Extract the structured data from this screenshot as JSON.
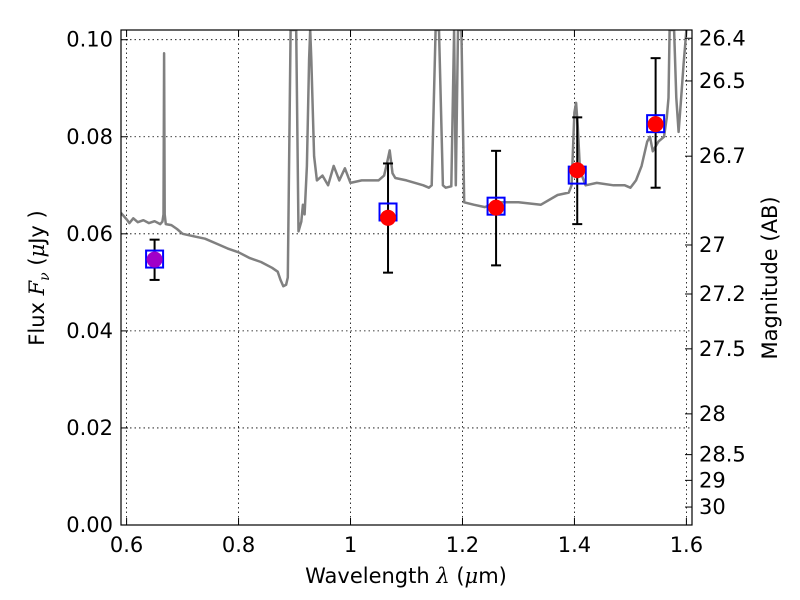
{
  "chart_data": {
    "type": "scatter",
    "title": "",
    "xlabel": {
      "prefix": "Wavelength  ",
      "symbol": "λ",
      "suffix_open": " (",
      "unit_symbol": "μ",
      "unit": "m",
      "suffix_close": ")"
    },
    "ylabel": {
      "prefix": "Flux  ",
      "symbol": "F",
      "subscript": "ν",
      "suffix_open": "  (",
      "unit_symbol": "μ",
      "unit": "Jy",
      "suffix_close": " )"
    },
    "y2label": "Magnitude (AB)",
    "xlim": [
      0.59,
      1.61
    ],
    "ylim": [
      0.0,
      0.102
    ],
    "xticks": [
      {
        "value": 0.6,
        "label": "0.6"
      },
      {
        "value": 0.8,
        "label": "0.8"
      },
      {
        "value": 1.0,
        "label": "1"
      },
      {
        "value": 1.2,
        "label": "1.2"
      },
      {
        "value": 1.4,
        "label": "1.4"
      },
      {
        "value": 1.6,
        "label": "1.6"
      }
    ],
    "yticks": [
      {
        "value": 0.0,
        "label": "0.00"
      },
      {
        "value": 0.02,
        "label": "0.02"
      },
      {
        "value": 0.04,
        "label": "0.04"
      },
      {
        "value": 0.06,
        "label": "0.06"
      },
      {
        "value": 0.08,
        "label": "0.08"
      },
      {
        "value": 0.1,
        "label": "0.10"
      }
    ],
    "y2ticks": [
      {
        "flux": 0.1003,
        "label": "26.4"
      },
      {
        "flux": 0.0915,
        "label": "26.5"
      },
      {
        "flux": 0.076,
        "label": "26.7"
      },
      {
        "flux": 0.0577,
        "label": "27"
      },
      {
        "flux": 0.0476,
        "label": "27.2"
      },
      {
        "flux": 0.0363,
        "label": "27.5"
      },
      {
        "flux": 0.0229,
        "label": "28"
      },
      {
        "flux": 0.0145,
        "label": "28.5"
      },
      {
        "flux": 0.0092,
        "label": "29"
      },
      {
        "flux": 0.0037,
        "label": "30"
      }
    ],
    "grid": true,
    "model_spectrum": {
      "color": "#808080",
      "points": [
        [
          0.59,
          0.0643
        ],
        [
          0.6,
          0.063
        ],
        [
          0.605,
          0.0622
        ],
        [
          0.612,
          0.0632
        ],
        [
          0.62,
          0.0624
        ],
        [
          0.63,
          0.0628
        ],
        [
          0.64,
          0.0622
        ],
        [
          0.65,
          0.0626
        ],
        [
          0.66,
          0.062
        ],
        [
          0.664,
          0.0625
        ],
        [
          0.666,
          0.064
        ],
        [
          0.667,
          0.0972
        ],
        [
          0.668,
          0.064
        ],
        [
          0.67,
          0.062
        ],
        [
          0.68,
          0.0618
        ],
        [
          0.69,
          0.061
        ],
        [
          0.7,
          0.06
        ],
        [
          0.72,
          0.0595
        ],
        [
          0.74,
          0.059
        ],
        [
          0.76,
          0.058
        ],
        [
          0.78,
          0.057
        ],
        [
          0.8,
          0.0562
        ],
        [
          0.82,
          0.055
        ],
        [
          0.84,
          0.0542
        ],
        [
          0.86,
          0.053
        ],
        [
          0.87,
          0.0522
        ],
        [
          0.875,
          0.0505
        ],
        [
          0.88,
          0.0492
        ],
        [
          0.885,
          0.0495
        ],
        [
          0.888,
          0.051
        ],
        [
          0.893,
          0.102
        ],
        [
          0.903,
          0.102
        ],
        [
          0.907,
          0.0605
        ],
        [
          0.912,
          0.0625
        ],
        [
          0.915,
          0.066
        ],
        [
          0.918,
          0.064
        ],
        [
          0.922,
          0.074
        ],
        [
          0.926,
          0.096
        ],
        [
          0.928,
          0.102
        ],
        [
          0.93,
          0.096
        ],
        [
          0.935,
          0.076
        ],
        [
          0.94,
          0.071
        ],
        [
          0.95,
          0.072
        ],
        [
          0.96,
          0.07
        ],
        [
          0.97,
          0.074
        ],
        [
          0.98,
          0.071
        ],
        [
          0.99,
          0.0735
        ],
        [
          1.0,
          0.0705
        ],
        [
          1.02,
          0.071
        ],
        [
          1.05,
          0.071
        ],
        [
          1.06,
          0.072
        ],
        [
          1.065,
          0.0745
        ],
        [
          1.07,
          0.0772
        ],
        [
          1.075,
          0.0725
        ],
        [
          1.08,
          0.0715
        ],
        [
          1.1,
          0.071
        ],
        [
          1.13,
          0.07
        ],
        [
          1.14,
          0.0695
        ],
        [
          1.145,
          0.07
        ],
        [
          1.152,
          0.102
        ],
        [
          1.158,
          0.102
        ],
        [
          1.165,
          0.07
        ],
        [
          1.17,
          0.0695
        ],
        [
          1.18,
          0.0698
        ],
        [
          1.185,
          0.102
        ],
        [
          1.188,
          0.07
        ],
        [
          1.192,
          0.102
        ],
        [
          1.198,
          0.102
        ],
        [
          1.203,
          0.0665
        ],
        [
          1.22,
          0.066
        ],
        [
          1.24,
          0.0655
        ],
        [
          1.26,
          0.0665
        ],
        [
          1.28,
          0.0665
        ],
        [
          1.3,
          0.0665
        ],
        [
          1.34,
          0.066
        ],
        [
          1.37,
          0.068
        ],
        [
          1.39,
          0.0685
        ],
        [
          1.395,
          0.07
        ],
        [
          1.4,
          0.085
        ],
        [
          1.403,
          0.087
        ],
        [
          1.406,
          0.082
        ],
        [
          1.41,
          0.073
        ],
        [
          1.42,
          0.07
        ],
        [
          1.44,
          0.0705
        ],
        [
          1.47,
          0.07
        ],
        [
          1.49,
          0.07
        ],
        [
          1.5,
          0.0695
        ],
        [
          1.51,
          0.071
        ],
        [
          1.52,
          0.074
        ],
        [
          1.53,
          0.079
        ],
        [
          1.535,
          0.08
        ],
        [
          1.54,
          0.077
        ],
        [
          1.55,
          0.079
        ],
        [
          1.56,
          0.08
        ],
        [
          1.565,
          0.084
        ],
        [
          1.568,
          0.088
        ],
        [
          1.57,
          0.102
        ],
        [
          1.578,
          0.102
        ],
        [
          1.582,
          0.088
        ],
        [
          1.586,
          0.081
        ],
        [
          1.59,
          0.087
        ],
        [
          1.595,
          0.095
        ],
        [
          1.6,
          0.102
        ]
      ]
    },
    "observed": {
      "color": "#ff0000",
      "points": [
        {
          "x": 0.65,
          "y": 0.0547,
          "ylo": 0.0505,
          "yhi": 0.0588,
          "color": "#a000c8"
        },
        {
          "x": 1.067,
          "y": 0.0633,
          "ylo": 0.052,
          "yhi": 0.0745
        },
        {
          "x": 1.26,
          "y": 0.0654,
          "ylo": 0.0535,
          "yhi": 0.0771
        },
        {
          "x": 1.405,
          "y": 0.0731,
          "ylo": 0.062,
          "yhi": 0.084
        },
        {
          "x": 1.545,
          "y": 0.0826,
          "ylo": 0.0695,
          "yhi": 0.0962
        }
      ]
    },
    "model_bands": {
      "color": "#0000ff",
      "points": [
        {
          "x": 0.65,
          "y": 0.0548
        },
        {
          "x": 1.067,
          "y": 0.0645
        },
        {
          "x": 1.26,
          "y": 0.0657
        },
        {
          "x": 1.405,
          "y": 0.0721
        },
        {
          "x": 1.545,
          "y": 0.0827
        }
      ]
    }
  }
}
